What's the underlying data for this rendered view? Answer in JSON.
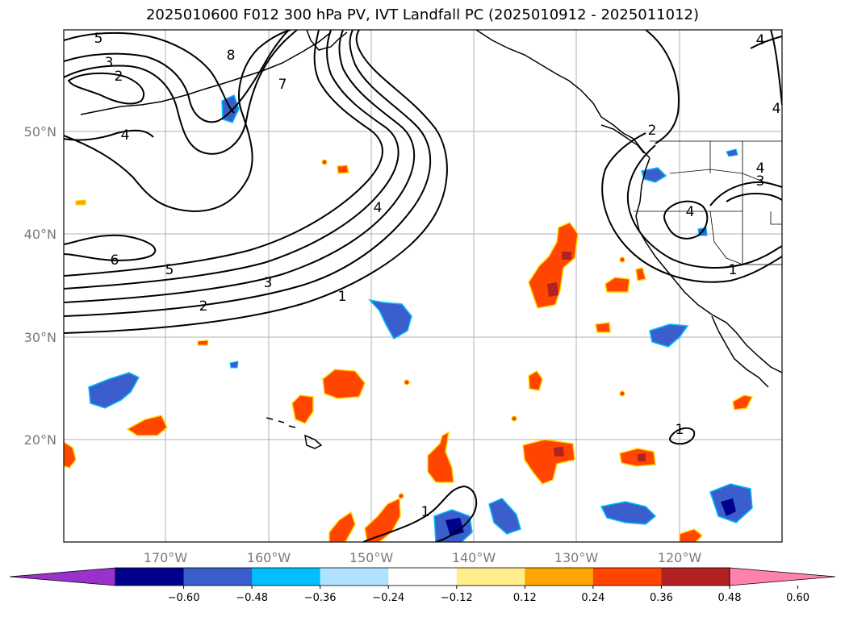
{
  "title": "2025010600 F012 300 hPa PV, IVT Landfall PC (2025010912 - 2025011012)",
  "lon_ticks": [
    "170°W",
    "160°W",
    "150°W",
    "140°W",
    "130°W",
    "120°W"
  ],
  "lat_ticks": [
    "50°N",
    "40°N",
    "30°N",
    "20°N"
  ],
  "colorbar": {
    "ticks": [
      "−0.60",
      "−0.48",
      "−0.36",
      "−0.24",
      "−0.12",
      "0.12",
      "0.24",
      "0.36",
      "0.48",
      "0.60"
    ],
    "colors": [
      "#9932cc",
      "#00008b",
      "#3a5fcd",
      "#00bfff",
      "#b0e2ff",
      "#ffffff",
      "#ffec8b",
      "#ffa500",
      "#ff4500",
      "#b22222",
      "#ff82ab"
    ]
  },
  "contour_labels": [
    "5",
    "3",
    "2",
    "4",
    "8",
    "7",
    "6",
    "5",
    "3",
    "2",
    "4",
    "1",
    "2",
    "4",
    "3",
    "4",
    "1",
    "1",
    "1",
    "4",
    "4"
  ],
  "colors": {
    "frame": "#000000",
    "grid": "#b0b0b0",
    "coast": "#000000",
    "contour": "#000000"
  }
}
